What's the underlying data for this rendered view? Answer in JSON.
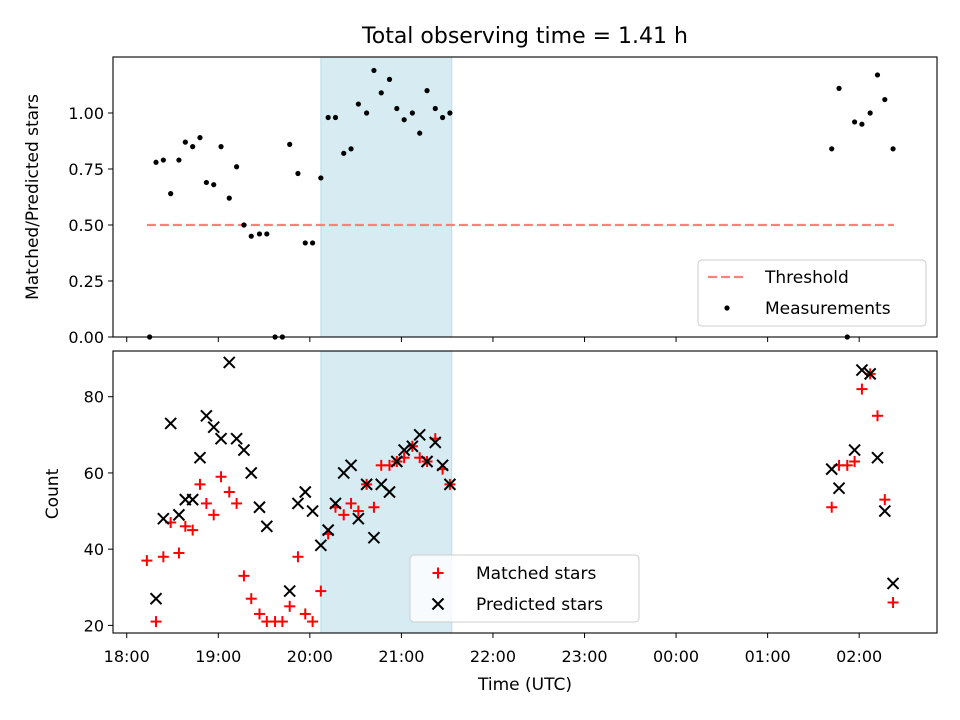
{
  "chart_data": [
    {
      "type": "scatter",
      "title": "Total observing time = 1.41 h",
      "ylabel": "Matched/Predicted stars",
      "xlabel": "",
      "x_unit": "hours since 18:00 UTC",
      "xlim": [
        17.85,
        26.85
      ],
      "ylim": [
        0.0,
        1.25
      ],
      "y_ticks": [
        0.0,
        0.25,
        0.5,
        0.75,
        1.0
      ],
      "y_tick_labels": [
        "0.00",
        "0.25",
        "0.50",
        "0.75",
        "1.00"
      ],
      "highlight_span": [
        20.12,
        21.55
      ],
      "threshold": {
        "name": "Threshold",
        "y": 0.5,
        "x_range": [
          18.22,
          26.38
        ],
        "color": "#ff7f7f"
      },
      "legend": {
        "placement": "lower right",
        "entries": [
          "Threshold",
          "Measurements"
        ]
      },
      "series": [
        {
          "name": "Measurements",
          "color": "#000000",
          "points": [
            [
              18.25,
              0.0
            ],
            [
              18.32,
              0.78
            ],
            [
              18.4,
              0.79
            ],
            [
              18.48,
              0.64
            ],
            [
              18.57,
              0.79
            ],
            [
              18.64,
              0.87
            ],
            [
              18.72,
              0.85
            ],
            [
              18.8,
              0.89
            ],
            [
              18.87,
              0.69
            ],
            [
              18.95,
              0.68
            ],
            [
              19.03,
              0.85
            ],
            [
              19.12,
              0.62
            ],
            [
              19.2,
              0.76
            ],
            [
              19.28,
              0.5
            ],
            [
              19.36,
              0.45
            ],
            [
              19.45,
              0.46
            ],
            [
              19.53,
              0.46
            ],
            [
              19.62,
              0.0
            ],
            [
              19.7,
              0.0
            ],
            [
              19.78,
              0.86
            ],
            [
              19.87,
              0.73
            ],
            [
              19.95,
              0.42
            ],
            [
              20.03,
              0.42
            ],
            [
              20.12,
              0.71
            ],
            [
              20.2,
              0.98
            ],
            [
              20.28,
              0.98
            ],
            [
              20.37,
              0.82
            ],
            [
              20.45,
              0.84
            ],
            [
              20.53,
              1.04
            ],
            [
              20.62,
              1.0
            ],
            [
              20.7,
              1.19
            ],
            [
              20.78,
              1.09
            ],
            [
              20.87,
              1.15
            ],
            [
              20.95,
              1.02
            ],
            [
              21.03,
              0.97
            ],
            [
              21.12,
              1.0
            ],
            [
              21.2,
              0.91
            ],
            [
              21.28,
              1.1
            ],
            [
              21.37,
              1.02
            ],
            [
              21.45,
              0.98
            ],
            [
              21.53,
              1.0
            ],
            [
              25.7,
              0.84
            ],
            [
              25.78,
              1.11
            ],
            [
              25.87,
              0.0
            ],
            [
              25.95,
              0.96
            ],
            [
              26.03,
              0.95
            ],
            [
              26.12,
              1.0
            ],
            [
              26.2,
              1.17
            ],
            [
              26.28,
              1.06
            ],
            [
              26.37,
              0.84
            ]
          ]
        }
      ]
    },
    {
      "type": "scatter",
      "title": "",
      "ylabel": "Count",
      "xlabel": "Time (UTC)",
      "x_unit": "hours since 18:00 UTC",
      "xlim": [
        17.85,
        26.85
      ],
      "ylim": [
        18,
        92
      ],
      "y_ticks": [
        20,
        40,
        60,
        80
      ],
      "y_tick_labels": [
        "20",
        "40",
        "60",
        "80"
      ],
      "x_ticks": [
        18,
        19,
        20,
        21,
        22,
        23,
        24,
        25,
        26
      ],
      "x_tick_labels": [
        "18:00",
        "19:00",
        "20:00",
        "21:00",
        "22:00",
        "23:00",
        "00:00",
        "01:00",
        "02:00"
      ],
      "highlight_span": [
        20.12,
        21.55
      ],
      "legend": {
        "placement": "lower center",
        "entries": [
          "Matched stars",
          "Predicted stars"
        ]
      },
      "series": [
        {
          "name": "Matched stars",
          "marker": "+",
          "color": "#ff0000",
          "points": [
            [
              18.22,
              37
            ],
            [
              18.32,
              21
            ],
            [
              18.4,
              38
            ],
            [
              18.48,
              47
            ],
            [
              18.57,
              39
            ],
            [
              18.64,
              46
            ],
            [
              18.72,
              45
            ],
            [
              18.8,
              57
            ],
            [
              18.87,
              52
            ],
            [
              18.95,
              49
            ],
            [
              19.03,
              59
            ],
            [
              19.12,
              55
            ],
            [
              19.2,
              52
            ],
            [
              19.28,
              33
            ],
            [
              19.36,
              27
            ],
            [
              19.45,
              23
            ],
            [
              19.53,
              21
            ],
            [
              19.62,
              21
            ],
            [
              19.7,
              21
            ],
            [
              19.78,
              25
            ],
            [
              19.87,
              38
            ],
            [
              19.95,
              23
            ],
            [
              20.03,
              21
            ],
            [
              20.12,
              29
            ],
            [
              20.2,
              44
            ],
            [
              20.28,
              51
            ],
            [
              20.37,
              49
            ],
            [
              20.45,
              52
            ],
            [
              20.53,
              50
            ],
            [
              20.62,
              57
            ],
            [
              20.7,
              51
            ],
            [
              20.78,
              62
            ],
            [
              20.87,
              62
            ],
            [
              20.95,
              63
            ],
            [
              21.03,
              64
            ],
            [
              21.12,
              67
            ],
            [
              21.2,
              64
            ],
            [
              21.28,
              63
            ],
            [
              21.37,
              69
            ],
            [
              21.45,
              61
            ],
            [
              21.53,
              57
            ],
            [
              25.7,
              51
            ],
            [
              25.78,
              62
            ],
            [
              25.87,
              62
            ],
            [
              25.95,
              63
            ],
            [
              26.03,
              82
            ],
            [
              26.12,
              86
            ],
            [
              26.2,
              75
            ],
            [
              26.28,
              53
            ],
            [
              26.37,
              26
            ]
          ]
        },
        {
          "name": "Predicted stars",
          "marker": "x",
          "color": "#000000",
          "points": [
            [
              18.32,
              27
            ],
            [
              18.4,
              48
            ],
            [
              18.48,
              73
            ],
            [
              18.57,
              49
            ],
            [
              18.64,
              53
            ],
            [
              18.72,
              53
            ],
            [
              18.8,
              64
            ],
            [
              18.87,
              75
            ],
            [
              18.95,
              72
            ],
            [
              19.03,
              69
            ],
            [
              19.12,
              89
            ],
            [
              19.2,
              69
            ],
            [
              19.28,
              66
            ],
            [
              19.36,
              60
            ],
            [
              19.45,
              51
            ],
            [
              19.53,
              46
            ],
            [
              19.78,
              29
            ],
            [
              19.87,
              52
            ],
            [
              19.95,
              55
            ],
            [
              20.03,
              50
            ],
            [
              20.12,
              41
            ],
            [
              20.2,
              45
            ],
            [
              20.28,
              52
            ],
            [
              20.37,
              60
            ],
            [
              20.45,
              62
            ],
            [
              20.53,
              48
            ],
            [
              20.62,
              57
            ],
            [
              20.7,
              43
            ],
            [
              20.78,
              57
            ],
            [
              20.87,
              55
            ],
            [
              20.95,
              63
            ],
            [
              21.03,
              66
            ],
            [
              21.12,
              67
            ],
            [
              21.2,
              70
            ],
            [
              21.28,
              63
            ],
            [
              21.37,
              68
            ],
            [
              21.45,
              62
            ],
            [
              21.53,
              57
            ],
            [
              25.7,
              61
            ],
            [
              25.78,
              56
            ],
            [
              25.95,
              66
            ],
            [
              26.03,
              87
            ],
            [
              26.12,
              86
            ],
            [
              26.2,
              64
            ],
            [
              26.28,
              50
            ],
            [
              26.37,
              31
            ]
          ]
        }
      ]
    }
  ]
}
